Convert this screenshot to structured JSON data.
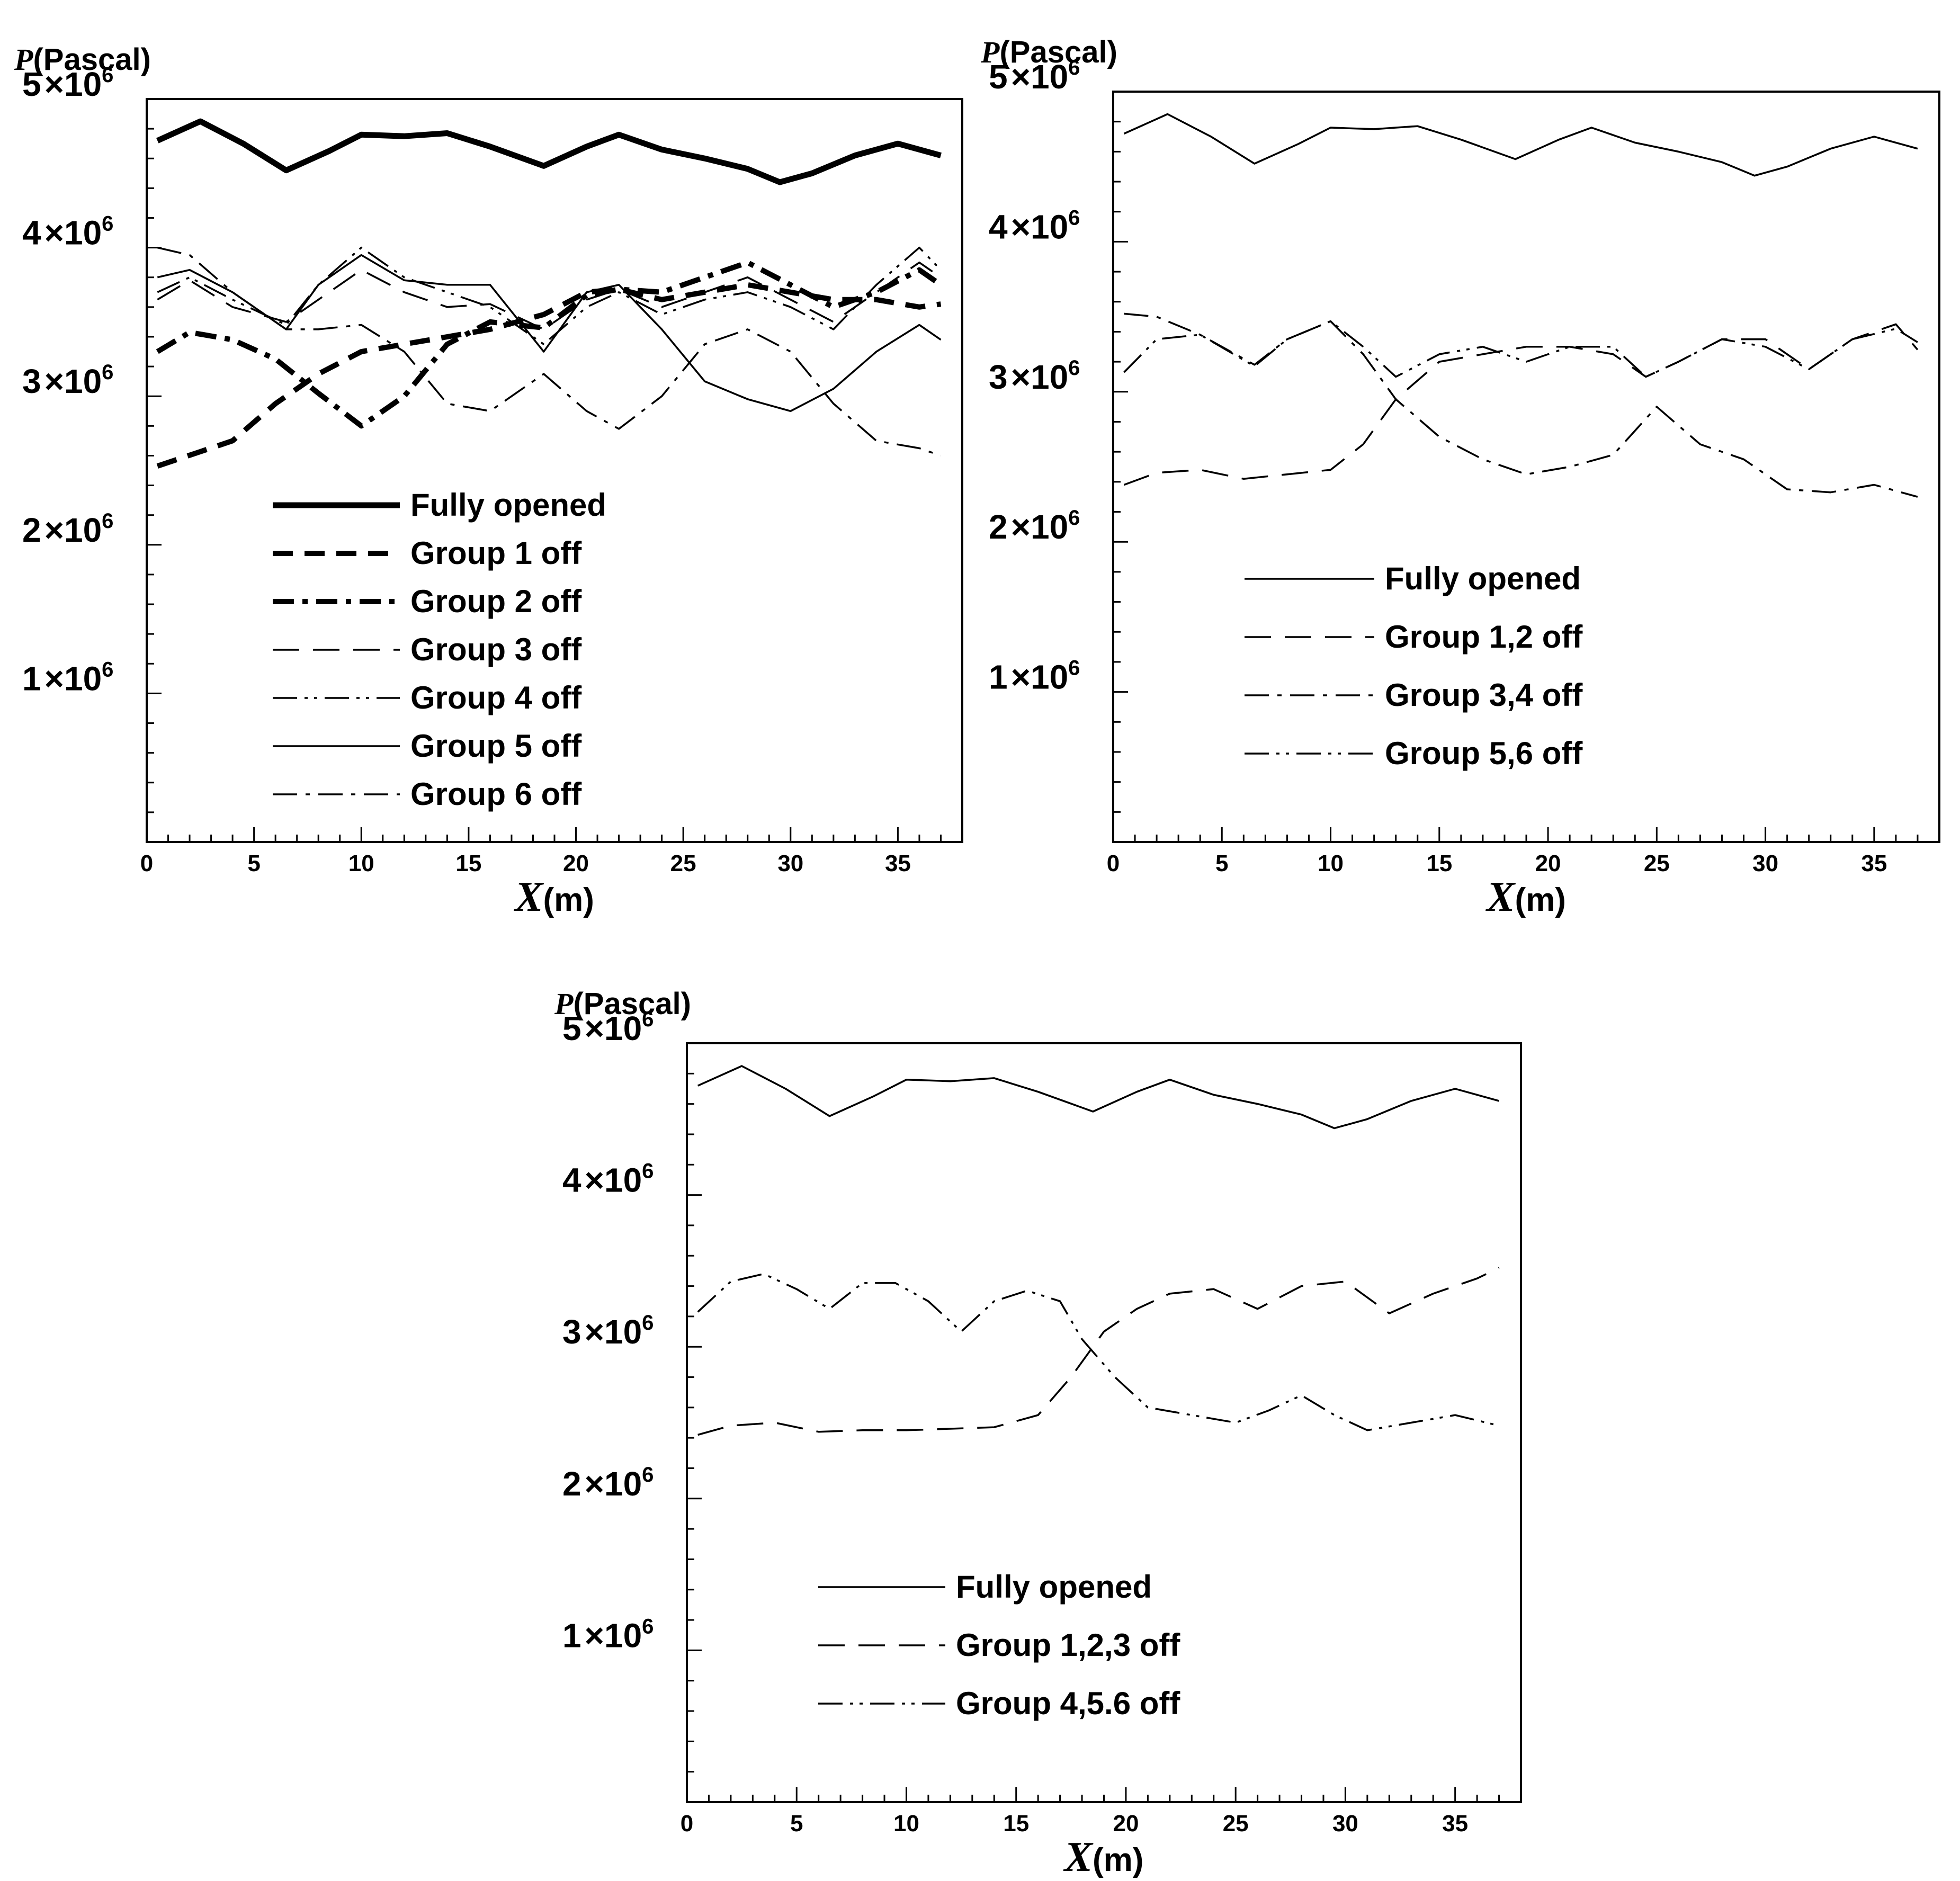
{
  "chart_data": [
    {
      "type": "line",
      "ylabel_symbol": "P",
      "ylabel_unit": "(Pascal)",
      "xlabel_symbol": "X",
      "xlabel_unit": "(m)",
      "xlim": [
        0,
        38
      ],
      "ylim": [
        0,
        5000000
      ],
      "xticks": [
        "0",
        "5",
        "10",
        "15",
        "20",
        "25",
        "30",
        "35"
      ],
      "yticks": [
        {
          "mantissa": "1",
          "times": "×10",
          "exp": "6",
          "value": 1000000
        },
        {
          "mantissa": "2",
          "times": "×10",
          "exp": "6",
          "value": 2000000
        },
        {
          "mantissa": "3",
          "times": "×10",
          "exp": "6",
          "value": 3000000
        },
        {
          "mantissa": "4",
          "times": "×10",
          "exp": "6",
          "value": 4000000
        },
        {
          "mantissa": "5",
          "times": "×10",
          "exp": "6",
          "value": 5000000
        }
      ],
      "series": [
        {
          "name": "Fully opened",
          "style": "thick-solid",
          "x": [
            0.5,
            2.5,
            4.5,
            6.5,
            8.5,
            10,
            12,
            14,
            16,
            18.5,
            20.5,
            22,
            24,
            26,
            28,
            29.5,
            31,
            33,
            35,
            37
          ],
          "y": [
            4720000,
            4850000,
            4700000,
            4520000,
            4650000,
            4760000,
            4750000,
            4770000,
            4680000,
            4550000,
            4680000,
            4760000,
            4660000,
            4600000,
            4530000,
            4440000,
            4500000,
            4620000,
            4700000,
            4620000
          ]
        },
        {
          "name": "Group 1 off",
          "style": "thick-dashed",
          "x": [
            0.5,
            4,
            6,
            8,
            10,
            12,
            14,
            16,
            18.5,
            20.5,
            22,
            24,
            26,
            28,
            30,
            32,
            34,
            36,
            37
          ],
          "y": [
            2530000,
            2700000,
            2950000,
            3150000,
            3300000,
            3350000,
            3400000,
            3450000,
            3550000,
            3700000,
            3720000,
            3650000,
            3700000,
            3750000,
            3700000,
            3650000,
            3650000,
            3600000,
            3620000
          ]
        },
        {
          "name": "Group 2 off",
          "style": "thick-dashdot",
          "x": [
            0.5,
            2,
            4,
            6,
            8,
            10,
            12,
            14,
            16,
            18.5,
            20.5,
            22,
            24,
            26,
            28,
            30,
            32,
            34,
            36,
            37
          ],
          "y": [
            3300000,
            3430000,
            3380000,
            3250000,
            3020000,
            2800000,
            3000000,
            3350000,
            3500000,
            3460000,
            3680000,
            3720000,
            3700000,
            3800000,
            3900000,
            3750000,
            3600000,
            3700000,
            3850000,
            3750000
          ]
        },
        {
          "name": "Group 3 off",
          "style": "long-dash",
          "x": [
            0.5,
            2,
            4,
            6.5,
            8.5,
            10,
            12,
            14,
            16,
            18.5,
            20.5,
            22,
            24,
            26,
            28,
            30,
            32,
            34,
            36,
            37
          ],
          "y": [
            3650000,
            3780000,
            3600000,
            3500000,
            3700000,
            3850000,
            3700000,
            3600000,
            3620000,
            3450000,
            3650000,
            3720000,
            3600000,
            3700000,
            3800000,
            3650000,
            3500000,
            3700000,
            3900000,
            3800000
          ]
        },
        {
          "name": "Group 4 off",
          "style": "dash-dot-dot",
          "x": [
            0.5,
            2,
            4,
            6.5,
            8,
            10,
            12,
            14,
            16,
            18.5,
            20.5,
            22,
            24,
            26,
            28,
            30,
            32,
            34,
            36,
            37
          ],
          "y": [
            3700000,
            3800000,
            3650000,
            3480000,
            3750000,
            4000000,
            3800000,
            3700000,
            3600000,
            3350000,
            3600000,
            3700000,
            3550000,
            3650000,
            3700000,
            3600000,
            3450000,
            3750000,
            4000000,
            3850000
          ]
        },
        {
          "name": "Group 5 off",
          "style": "thin-solid",
          "x": [
            0.5,
            2,
            4,
            6.5,
            8,
            10,
            12,
            14,
            16,
            18.5,
            20.5,
            22,
            24,
            26,
            28,
            30,
            32,
            34,
            36,
            37
          ],
          "y": [
            3800000,
            3850000,
            3700000,
            3450000,
            3750000,
            3950000,
            3780000,
            3750000,
            3750000,
            3300000,
            3700000,
            3750000,
            3450000,
            3100000,
            2980000,
            2900000,
            3050000,
            3300000,
            3480000,
            3380000
          ]
        },
        {
          "name": "Group 6 off",
          "style": "dash-dot",
          "x": [
            0.5,
            2,
            4,
            6.5,
            8,
            10,
            12,
            14,
            16,
            18.5,
            20.5,
            22,
            24,
            26,
            28,
            30,
            32,
            34,
            36,
            37
          ],
          "y": [
            4000000,
            3950000,
            3700000,
            3450000,
            3450000,
            3480000,
            3300000,
            2950000,
            2900000,
            3150000,
            2900000,
            2780000,
            3000000,
            3350000,
            3450000,
            3300000,
            2950000,
            2700000,
            2650000,
            2600000
          ]
        }
      ]
    },
    {
      "type": "line",
      "ylabel_symbol": "P",
      "ylabel_unit": "(Pascal)",
      "xlabel_symbol": "X",
      "xlabel_unit": "(m)",
      "xlim": [
        0,
        38
      ],
      "ylim": [
        0,
        5000000
      ],
      "xticks": [
        "0",
        "5",
        "10",
        "15",
        "20",
        "25",
        "30",
        "35"
      ],
      "yticks": [
        {
          "mantissa": "1",
          "times": "×10",
          "exp": "6",
          "value": 1000000
        },
        {
          "mantissa": "2",
          "times": "×10",
          "exp": "6",
          "value": 2000000
        },
        {
          "mantissa": "3",
          "times": "×10",
          "exp": "6",
          "value": 3000000
        },
        {
          "mantissa": "4",
          "times": "×10",
          "exp": "6",
          "value": 4000000
        },
        {
          "mantissa": "5",
          "times": "×10",
          "exp": "6",
          "value": 5000000
        }
      ],
      "series": [
        {
          "name": "Fully opened",
          "style": "thin-solid",
          "x": [
            0.5,
            2.5,
            4.5,
            6.5,
            8.5,
            10,
            12,
            14,
            16,
            18.5,
            20.5,
            22,
            24,
            26,
            28,
            29.5,
            31,
            33,
            35,
            37
          ],
          "y": [
            4720000,
            4850000,
            4700000,
            4520000,
            4650000,
            4760000,
            4750000,
            4770000,
            4680000,
            4550000,
            4680000,
            4760000,
            4660000,
            4600000,
            4530000,
            4440000,
            4500000,
            4620000,
            4700000,
            4620000
          ]
        },
        {
          "name": "Group 1,2 off",
          "style": "long-dash",
          "x": [
            0.5,
            2,
            4,
            6,
            8,
            10,
            11.5,
            13,
            15,
            17,
            19,
            21,
            23,
            24.5,
            26,
            28,
            30,
            32,
            34,
            36,
            37
          ],
          "y": [
            2380000,
            2460000,
            2480000,
            2420000,
            2450000,
            2480000,
            2650000,
            2950000,
            3200000,
            3250000,
            3300000,
            3300000,
            3250000,
            3100000,
            3200000,
            3350000,
            3350000,
            3150000,
            3350000,
            3450000,
            3280000
          ]
        },
        {
          "name": "Group 3,4 off",
          "style": "dash-dot",
          "x": [
            0.5,
            2,
            4,
            6.5,
            8,
            10,
            11.5,
            13,
            15,
            17,
            19,
            21,
            23,
            25,
            27,
            29,
            31,
            33,
            35,
            37
          ],
          "y": [
            3520000,
            3500000,
            3380000,
            3180000,
            3350000,
            3470000,
            3250000,
            2950000,
            2700000,
            2550000,
            2450000,
            2500000,
            2580000,
            2900000,
            2650000,
            2550000,
            2350000,
            2330000,
            2380000,
            2300000
          ]
        },
        {
          "name": "Group 5,6 off",
          "style": "dash-dot-dot",
          "x": [
            0.5,
            2,
            4,
            6.5,
            8,
            10,
            11.5,
            13,
            15,
            17,
            19,
            21,
            23,
            24.5,
            26,
            28,
            30,
            32,
            34,
            36,
            37
          ],
          "y": [
            3130000,
            3350000,
            3380000,
            3170000,
            3350000,
            3470000,
            3300000,
            3100000,
            3250000,
            3300000,
            3200000,
            3300000,
            3300000,
            3100000,
            3200000,
            3350000,
            3300000,
            3150000,
            3350000,
            3420000,
            3330000
          ]
        }
      ]
    },
    {
      "type": "line",
      "ylabel_symbol": "P",
      "ylabel_unit": "(Pascal)",
      "xlabel_symbol": "X",
      "xlabel_unit": "(m)",
      "xlim": [
        0,
        38
      ],
      "ylim": [
        0,
        5000000
      ],
      "xticks": [
        "0",
        "5",
        "10",
        "15",
        "20",
        "25",
        "30",
        "35"
      ],
      "yticks": [
        {
          "mantissa": "1",
          "times": "×10",
          "exp": "6",
          "value": 1000000
        },
        {
          "mantissa": "2",
          "times": "×10",
          "exp": "6",
          "value": 2000000
        },
        {
          "mantissa": "3",
          "times": "×10",
          "exp": "6",
          "value": 3000000
        },
        {
          "mantissa": "4",
          "times": "×10",
          "exp": "6",
          "value": 4000000
        },
        {
          "mantissa": "5",
          "times": "×10",
          "exp": "6",
          "value": 5000000
        }
      ],
      "series": [
        {
          "name": "Fully opened",
          "style": "thin-solid",
          "x": [
            0.5,
            2.5,
            4.5,
            6.5,
            8.5,
            10,
            12,
            14,
            16,
            18.5,
            20.5,
            22,
            24,
            26,
            28,
            29.5,
            31,
            33,
            35,
            37
          ],
          "y": [
            4720000,
            4850000,
            4700000,
            4520000,
            4650000,
            4760000,
            4750000,
            4770000,
            4680000,
            4550000,
            4680000,
            4760000,
            4660000,
            4600000,
            4530000,
            4440000,
            4500000,
            4620000,
            4700000,
            4620000
          ]
        },
        {
          "name": "Group 1,2,3 off",
          "style": "long-dash",
          "x": [
            0.5,
            2,
            4,
            6,
            8,
            10,
            12,
            14,
            16,
            17.5,
            19,
            20.5,
            22,
            24,
            26,
            28,
            30,
            32,
            34,
            36,
            37
          ],
          "y": [
            2420000,
            2480000,
            2500000,
            2440000,
            2450000,
            2450000,
            2460000,
            2470000,
            2550000,
            2800000,
            3100000,
            3250000,
            3350000,
            3380000,
            3250000,
            3400000,
            3430000,
            3220000,
            3350000,
            3450000,
            3520000
          ]
        },
        {
          "name": "Group 4,5.6 off",
          "style": "dash-dot-dot",
          "x": [
            0.5,
            2,
            3.5,
            5,
            6.5,
            8,
            9.5,
            11,
            12.5,
            14,
            15.5,
            17,
            18,
            19.5,
            21,
            23,
            25,
            26.5,
            28,
            29.5,
            31,
            33,
            35,
            37
          ],
          "y": [
            3230000,
            3430000,
            3480000,
            3380000,
            3250000,
            3420000,
            3420000,
            3300000,
            3100000,
            3300000,
            3370000,
            3300000,
            3050000,
            2800000,
            2600000,
            2550000,
            2500000,
            2580000,
            2680000,
            2550000,
            2450000,
            2500000,
            2550000,
            2480000
          ]
        }
      ]
    }
  ]
}
